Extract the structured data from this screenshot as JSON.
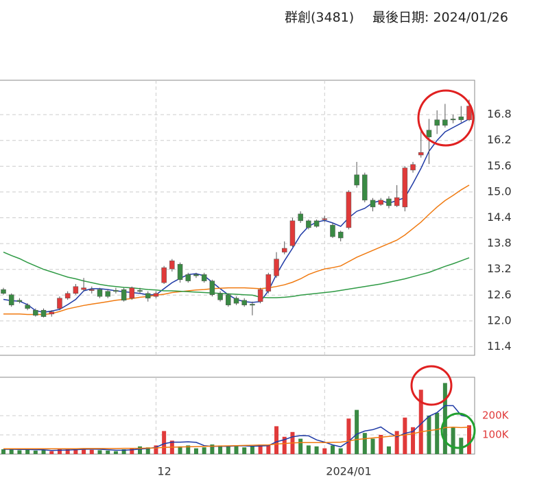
{
  "chart_data": [
    {
      "type": "candlestick",
      "title": "群創(3481)",
      "subtitle": "最後日期: 2024/01/26",
      "up_color": "#e03a3a",
      "down_color": "#3a8a44",
      "open": [
        12.73,
        12.61,
        12.48,
        12.37,
        12.25,
        12.25,
        12.16,
        12.29,
        12.53,
        12.64,
        12.73,
        12.71,
        12.73,
        12.69,
        12.71,
        12.73,
        12.53,
        12.71,
        12.64,
        12.57,
        12.89,
        13.21,
        13.32,
        13.08,
        13.08,
        13.08,
        12.93,
        12.64,
        12.61,
        12.53,
        12.48,
        12.39,
        12.45,
        12.69,
        13.05,
        13.6,
        13.75,
        14.49,
        14.33,
        14.33,
        14.36,
        14.23,
        14.07,
        14.17,
        15.4,
        15.4,
        14.81,
        14.71,
        14.84,
        14.68,
        14.65,
        15.51,
        15.86,
        16.44,
        16.68,
        16.68,
        16.7,
        16.75,
        16.68
      ],
      "close": [
        12.64,
        12.37,
        12.45,
        12.29,
        12.13,
        12.1,
        12.21,
        12.53,
        12.64,
        12.8,
        12.77,
        12.73,
        12.57,
        12.57,
        12.69,
        12.48,
        12.77,
        12.69,
        12.53,
        12.64,
        13.24,
        13.4,
        12.96,
        12.93,
        13.05,
        12.93,
        12.61,
        12.49,
        12.37,
        12.41,
        12.37,
        12.37,
        12.73,
        13.08,
        13.44,
        13.69,
        14.33,
        14.33,
        14.17,
        14.2,
        14.38,
        13.96,
        13.93,
        15.0,
        15.16,
        14.81,
        14.65,
        14.81,
        14.68,
        14.87,
        15.56,
        15.64,
        15.92,
        16.28,
        16.55,
        16.55,
        16.68,
        16.68,
        17.0
      ],
      "high": [
        12.77,
        12.64,
        12.53,
        12.41,
        12.29,
        12.29,
        12.25,
        12.57,
        12.69,
        12.86,
        13.0,
        12.8,
        12.77,
        12.73,
        12.77,
        12.77,
        12.8,
        12.77,
        12.69,
        12.69,
        13.28,
        13.44,
        13.36,
        13.12,
        13.12,
        13.12,
        12.96,
        12.69,
        12.64,
        12.57,
        12.53,
        12.45,
        12.77,
        13.12,
        13.6,
        13.85,
        14.4,
        14.55,
        14.36,
        14.36,
        14.45,
        14.28,
        14.1,
        15.04,
        15.7,
        15.45,
        14.86,
        14.86,
        14.9,
        15.16,
        15.6,
        15.7,
        16.5,
        16.7,
        16.9,
        17.05,
        16.8,
        17.0,
        17.15
      ],
      "low": [
        12.61,
        12.33,
        12.41,
        12.25,
        12.1,
        12.08,
        12.1,
        12.25,
        12.49,
        12.61,
        12.69,
        12.64,
        12.53,
        12.53,
        12.64,
        12.45,
        12.49,
        12.64,
        12.45,
        12.53,
        12.86,
        13.15,
        12.89,
        12.89,
        13.0,
        12.89,
        12.57,
        12.45,
        12.33,
        12.37,
        12.33,
        12.13,
        12.41,
        12.64,
        13.0,
        13.55,
        13.72,
        14.28,
        14.13,
        14.17,
        14.3,
        13.93,
        13.85,
        14.13,
        15.1,
        14.76,
        14.55,
        14.68,
        14.62,
        14.65,
        14.55,
        15.45,
        15.8,
        15.65,
        16.35,
        16.5,
        16.6,
        16.62,
        16.65
      ],
      "series": [
        {
          "color": "#1f3aa6",
          "values": [
            12.5,
            12.47,
            12.46,
            12.38,
            12.24,
            12.2,
            12.23,
            12.27,
            12.38,
            12.5,
            12.7,
            12.75,
            12.75,
            12.73,
            12.7,
            12.68,
            12.66,
            12.64,
            12.61,
            12.61,
            12.75,
            12.89,
            12.99,
            13.08,
            13.1,
            13.05,
            12.9,
            12.75,
            12.61,
            12.5,
            12.45,
            12.43,
            12.45,
            12.7,
            13.08,
            13.4,
            13.69,
            14.0,
            14.2,
            14.3,
            14.34,
            14.28,
            14.2,
            14.4,
            14.55,
            14.62,
            14.75,
            14.8,
            14.74,
            14.8,
            14.87,
            15.2,
            15.55,
            15.95,
            16.2,
            16.4,
            16.5,
            16.6,
            16.7
          ]
        },
        {
          "color": "#f07a10",
          "values": [
            12.16,
            12.16,
            12.16,
            12.15,
            12.15,
            12.15,
            12.17,
            12.22,
            12.28,
            12.32,
            12.36,
            12.39,
            12.42,
            12.45,
            12.48,
            12.5,
            12.52,
            12.55,
            12.57,
            12.6,
            12.62,
            12.66,
            12.68,
            12.7,
            12.72,
            12.73,
            12.75,
            12.76,
            12.77,
            12.77,
            12.77,
            12.76,
            12.75,
            12.77,
            12.8,
            12.84,
            12.9,
            12.98,
            13.08,
            13.15,
            13.21,
            13.24,
            13.28,
            13.38,
            13.48,
            13.56,
            13.64,
            13.72,
            13.8,
            13.88,
            14.0,
            14.15,
            14.3,
            14.48,
            14.65,
            14.8,
            14.92,
            15.05,
            15.16
          ]
        },
        {
          "color": "#2e9a44",
          "values": [
            13.6,
            13.52,
            13.45,
            13.36,
            13.28,
            13.2,
            13.14,
            13.08,
            13.02,
            12.98,
            12.93,
            12.89,
            12.85,
            12.82,
            12.8,
            12.78,
            12.77,
            12.75,
            12.73,
            12.72,
            12.7,
            12.7,
            12.69,
            12.68,
            12.67,
            12.66,
            12.65,
            12.64,
            12.63,
            12.62,
            12.61,
            12.6,
            12.55,
            12.54,
            12.54,
            12.55,
            12.57,
            12.6,
            12.62,
            12.64,
            12.66,
            12.68,
            12.71,
            12.74,
            12.77,
            12.8,
            12.83,
            12.86,
            12.9,
            12.94,
            12.98,
            13.03,
            13.08,
            13.13,
            13.2,
            13.27,
            13.33,
            13.4,
            13.47
          ]
        }
      ],
      "ylim": [
        11.2,
        17.6
      ],
      "yticks": [
        {
          "value": 11.4,
          "label": "11.4"
        },
        {
          "value": 12,
          "label": "12.0"
        },
        12.6,
        13.2,
        13.8,
        14.4,
        {
          "value": 15,
          "label": "15.0"
        },
        15.6,
        16.2,
        16.8
      ],
      "grid": true
    },
    {
      "type": "bar",
      "categories": [
        null,
        null,
        null,
        null,
        null,
        null,
        null,
        null,
        null,
        null,
        null,
        null,
        null,
        null,
        null,
        null,
        null,
        null,
        null,
        "12",
        null,
        null,
        null,
        null,
        null,
        null,
        null,
        null,
        null,
        null,
        null,
        null,
        null,
        null,
        null,
        null,
        null,
        null,
        null,
        null,
        "2024/01",
        null,
        null,
        null,
        null,
        null,
        null,
        null,
        null,
        null,
        null,
        null,
        null,
        null,
        null,
        null,
        null,
        null,
        null
      ],
      "values": [
        25000,
        30000,
        20000,
        22000,
        18000,
        20000,
        15000,
        25000,
        28000,
        25000,
        30000,
        22000,
        20000,
        18000,
        15000,
        25000,
        30000,
        40000,
        35000,
        45000,
        120000,
        70000,
        40000,
        45000,
        30000,
        35000,
        50000,
        45000,
        40000,
        45000,
        35000,
        40000,
        50000,
        50000,
        145000,
        90000,
        115000,
        80000,
        45000,
        40000,
        30000,
        45000,
        30000,
        185000,
        230000,
        110000,
        80000,
        100000,
        40000,
        120000,
        190000,
        140000,
        335000,
        200000,
        215000,
        370000,
        140000,
        85000,
        150000
      ],
      "series": [
        {
          "color": "#1f3aa6",
          "values": [
            25000,
            25000,
            24000,
            24000,
            23000,
            22000,
            19000,
            20000,
            21000,
            23000,
            25000,
            26000,
            25000,
            23000,
            20000,
            20000,
            22000,
            26000,
            29000,
            35000,
            54000,
            62000,
            62000,
            64000,
            61000,
            44000,
            40000,
            41000,
            40000,
            43000,
            43000,
            41000,
            42000,
            44000,
            64000,
            75000,
            90000,
            96000,
            95000,
            74000,
            62000,
            48000,
            38000,
            66000,
            104000,
            120000,
            127000,
            141000,
            112000,
            90000,
            108000,
            118000,
            157000,
            197000,
            216000,
            252000,
            252000,
            202000,
            192000
          ]
        },
        {
          "color": "#f07a10",
          "values": [
            28000,
            28000,
            28000,
            28000,
            28000,
            28000,
            28000,
            28000,
            28000,
            28000,
            29000,
            29000,
            29000,
            29000,
            29000,
            30000,
            30000,
            30000,
            31000,
            32000,
            35000,
            36000,
            37000,
            38000,
            39000,
            40000,
            41000,
            42000,
            43000,
            44000,
            45000,
            46000,
            47000,
            48000,
            52000,
            55000,
            58000,
            60000,
            60000,
            60000,
            60000,
            61000,
            62000,
            68000,
            76000,
            80000,
            84000,
            88000,
            92000,
            96000,
            100000,
            106000,
            116000,
            122000,
            128000,
            138000,
            140000,
            138000,
            140000
          ]
        }
      ],
      "tick_color": "#e03a3a",
      "ylim": [
        0,
        400000
      ],
      "yticks": [
        {
          "value": 100000,
          "label": "100K"
        },
        {
          "value": 200000,
          "label": "200K"
        }
      ],
      "grid": true
    }
  ]
}
